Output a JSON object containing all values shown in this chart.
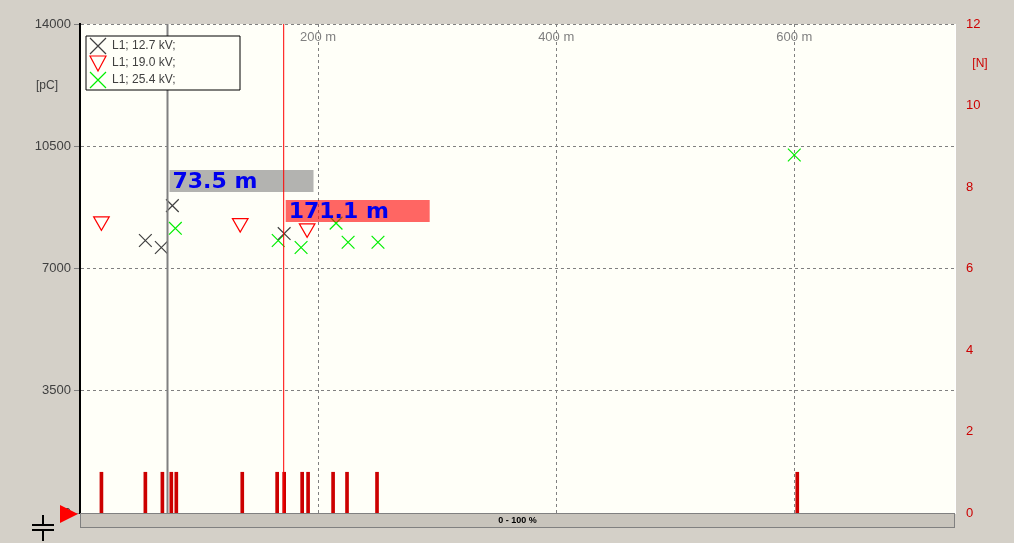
{
  "chart_data": {
    "type": "scatter",
    "ylabel": "[pC]",
    "y2label": "[N]",
    "xlim": [
      0,
      735
    ],
    "xticks": [
      {
        "value": 200,
        "label": "200 m"
      },
      {
        "value": 400,
        "label": "400 m"
      },
      {
        "value": 600,
        "label": "600 m"
      }
    ],
    "ylim": [
      0,
      14000
    ],
    "yticks": [
      0,
      3500,
      7000,
      10500,
      14000
    ],
    "y2lim": [
      0,
      12
    ],
    "y2ticks": [
      0,
      2,
      4,
      6,
      8,
      10,
      12
    ],
    "series": [
      {
        "name": "L1; 12.7 kV;",
        "color": "#404040",
        "marker": "cross",
        "x": [
          54.9,
          68.3,
          77.6,
          171.5
        ],
        "values": [
          7800,
          7600,
          8800,
          8000
        ]
      },
      {
        "name": "L1; 19.0 kV;",
        "color": "#ff0000",
        "marker": "triangle",
        "x": [
          18.0,
          134.6,
          190.8
        ],
        "values": [
          8350,
          8300,
          8150
        ]
      },
      {
        "name": "L1; 25.4 kV;",
        "color": "#00ee00",
        "marker": "cross",
        "x": [
          80.1,
          166.5,
          185.7,
          215.1,
          225.2,
          250.3,
          600.0
        ],
        "values": [
          8150,
          7800,
          7600,
          8300,
          7750,
          7750,
          10250
        ]
      },
      {
        "type": "bar",
        "axis": "y2",
        "color": "#cc0000",
        "x": [
          18.0,
          54.9,
          69.2,
          76.7,
          80.9,
          136.3,
          165.6,
          171.5,
          186.6,
          191.6,
          212.6,
          224.3,
          249.5,
          602.5
        ],
        "values": [
          1,
          1,
          1,
          1,
          1,
          1,
          1,
          1,
          1,
          1,
          1,
          1,
          1,
          1
        ]
      }
    ],
    "ref_lines": [
      {
        "axis": "x",
        "value": 73.5,
        "label": "73.5 m",
        "color": "#808080"
      },
      {
        "axis": "x",
        "value": 171.1,
        "label": "171.1 m",
        "color": "#ff0000"
      }
    ],
    "grid": true,
    "legend": "top left",
    "annotations": [
      "0 - 100 %"
    ]
  }
}
